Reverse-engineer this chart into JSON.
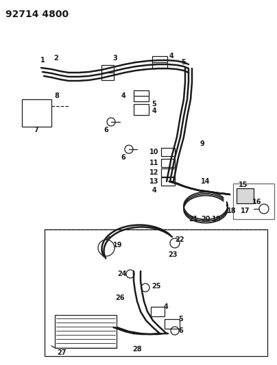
{
  "title": "92714 4800",
  "bg_color": "#ffffff",
  "line_color": "#1a1a1a",
  "title_fontsize": 10,
  "label_fontsize": 7,
  "figsize": [
    4.04,
    5.33
  ],
  "dpi": 100
}
